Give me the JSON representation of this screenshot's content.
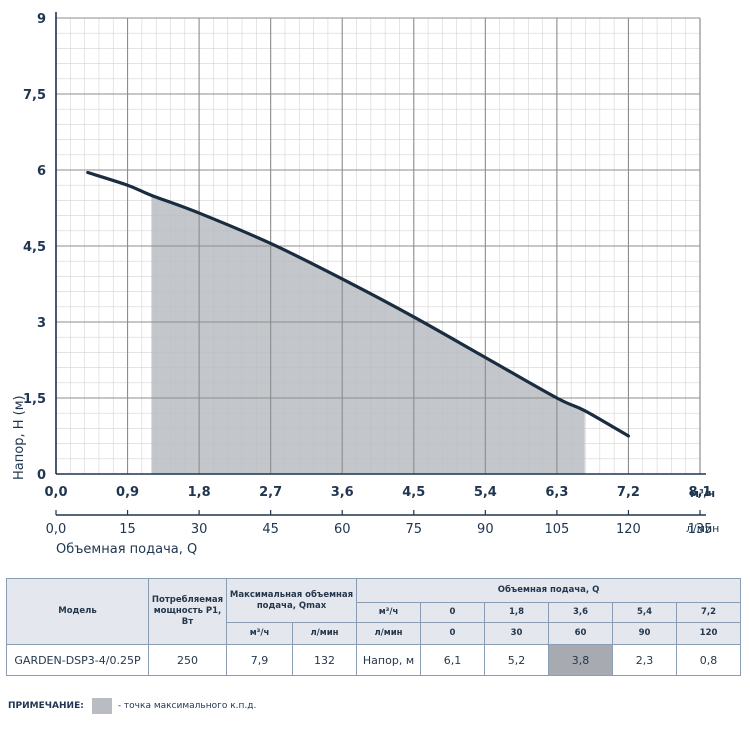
{
  "chart_data": {
    "type": "line",
    "ylabel": "Напор, Н (м)",
    "xlabel_m3h": "м³/ч",
    "xlabel_lmin": "л/мин",
    "xlabel": "Объемная подача, Q",
    "yticks": [
      "0",
      "1,5",
      "3",
      "4,5",
      "6",
      "7,5",
      "9"
    ],
    "ytick_values": [
      0,
      1.5,
      3,
      4.5,
      6,
      7.5,
      9
    ],
    "xticks_m3h": [
      "0,0",
      "0,9",
      "1,8",
      "2,7",
      "3,6",
      "4,5",
      "5,4",
      "6,3",
      "7,2",
      "8,1"
    ],
    "xtick_values_m3h": [
      0,
      0.9,
      1.8,
      2.7,
      3.6,
      4.5,
      5.4,
      6.3,
      7.2,
      8.1
    ],
    "xticks_lmin": [
      "0,0",
      "15",
      "30",
      "45",
      "60",
      "75",
      "90",
      "105",
      "120",
      "135"
    ],
    "xtick_values_lmin": [
      0,
      15,
      30,
      45,
      60,
      75,
      90,
      105,
      120,
      135
    ],
    "xlim": [
      0,
      8.1
    ],
    "ylim": [
      0,
      9
    ],
    "series": [
      {
        "x": [
          0.4,
          0.9,
          1.2,
          1.8,
          2.7,
          3.6,
          4.5,
          5.4,
          6.3,
          6.65,
          7.2
        ],
        "y": [
          5.95,
          5.7,
          5.5,
          5.15,
          4.55,
          3.85,
          3.1,
          2.3,
          1.5,
          1.25,
          0.75
        ]
      }
    ],
    "shaded_region": [
      1.2,
      6.65
    ],
    "grid": true
  },
  "table": {
    "headers": {
      "model": "Модель",
      "power": "Потребляемая мощность Р1, Вт",
      "max_flow": "Максимальная объемная подача, Qmax",
      "flow": "Объемная подача, Q",
      "m3h": "м³/ч",
      "lmin": "л/мин"
    },
    "flow_m3h": [
      "0",
      "1,8",
      "3,6",
      "5,4",
      "7,2"
    ],
    "flow_lmin": [
      "0",
      "30",
      "60",
      "90",
      "120"
    ],
    "row": {
      "model": "GARDEN-DSP3-4/0.25P",
      "power": "250",
      "qmax_m3h": "7,9",
      "qmax_lmin": "132",
      "head_label": "Напор, м",
      "head": [
        "6,1",
        "5,2",
        "3,8",
        "2,3",
        "0,8"
      ]
    }
  },
  "note": {
    "label": "ПРИМЕЧАНИЕ:",
    "text": "- точка максимального к.п.д."
  },
  "colors": {
    "axis": "#1f3550",
    "grid": "#8c8c8c",
    "minor_grid": "#d4d4d4",
    "curve": "#1a2d40",
    "shade": "#b9bdc3",
    "highlight_cell": "#a7abb1"
  }
}
